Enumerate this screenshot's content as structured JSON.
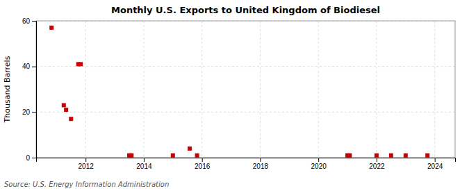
{
  "chart_data": {
    "type": "scatter",
    "title": "Monthly U.S. Exports to United Kingdom of Biodiesel",
    "ylabel": "Thousand Barrels",
    "annotations": [
      "Source: U.S. Energy Information Administration"
    ],
    "color": "#cc0000",
    "marker": "square",
    "x": [
      2010.83,
      2011.25,
      2011.33,
      2011.5,
      2011.75,
      2011.83,
      2013.5,
      2013.58,
      2015.0,
      2015.58,
      2015.83,
      2021.0,
      2021.08,
      2022.0,
      2022.5,
      2023.0,
      2023.75
    ],
    "values": [
      57,
      23,
      21,
      17,
      41,
      41,
      1,
      1,
      1,
      4,
      1,
      1,
      1,
      1,
      1,
      1,
      1
    ],
    "xlim": [
      2010.3,
      2024.7
    ],
    "ylim": [
      0,
      60
    ],
    "xticks": [
      2012,
      2014,
      2016,
      2018,
      2020,
      2022,
      2024
    ],
    "yticks": [
      0,
      20,
      40,
      60
    ],
    "grid": true
  }
}
